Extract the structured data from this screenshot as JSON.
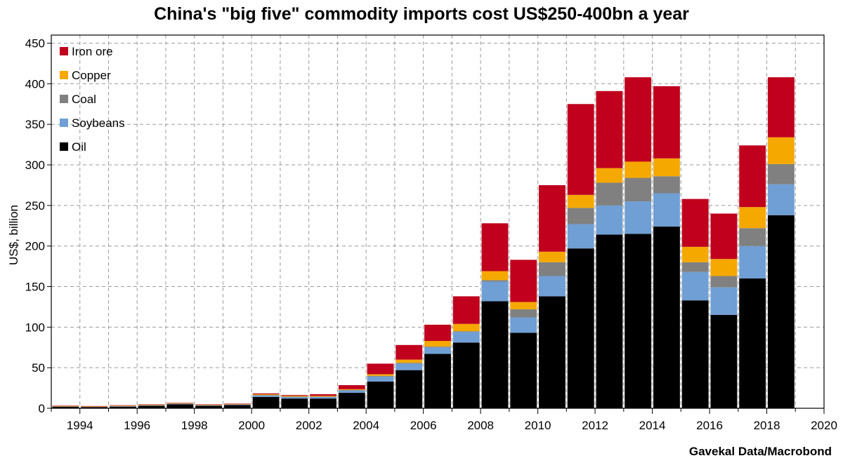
{
  "chart_data": {
    "type": "bar",
    "stacked": true,
    "title": "China's \"big five\" commodity imports cost US$250-400bn a year",
    "ylabel": "US$, billion",
    "xlabel": "",
    "source": "Gavekal Data/Macrobond",
    "ylim": [
      0,
      460
    ],
    "yticks": [
      0,
      50,
      100,
      150,
      200,
      250,
      300,
      350,
      400,
      450
    ],
    "xlim": [
      1993,
      2020
    ],
    "xticks": [
      1994,
      1996,
      1998,
      2000,
      2002,
      2004,
      2006,
      2008,
      2010,
      2012,
      2014,
      2016,
      2018,
      2020
    ],
    "grid": true,
    "legend_position": "top-left",
    "categories": [
      1993,
      1994,
      1995,
      1996,
      1997,
      1998,
      1999,
      2000,
      2001,
      2002,
      2003,
      2004,
      2005,
      2006,
      2007,
      2008,
      2009,
      2010,
      2011,
      2012,
      2013,
      2014,
      2015,
      2016,
      2017,
      2018
    ],
    "series": [
      {
        "name": "Oil",
        "color": "#000000",
        "values": [
          2,
          1.5,
          2,
          3,
          5,
          3,
          4,
          14,
          12,
          12,
          19,
          33,
          47,
          67,
          81,
          132,
          93,
          138,
          197,
          214,
          215,
          224,
          133,
          115,
          160,
          238
        ]
      },
      {
        "name": "Soybeans",
        "color": "#6f9fd4",
        "values": [
          0,
          0,
          0.5,
          0.5,
          0.5,
          0.5,
          0.5,
          2,
          2,
          2,
          3,
          6,
          8,
          8,
          13,
          24,
          19,
          25,
          30,
          36,
          40,
          41,
          35,
          34,
          40,
          38
        ]
      },
      {
        "name": "Coal",
        "color": "#808080",
        "values": [
          0.3,
          0.3,
          0.3,
          0.3,
          0.3,
          0.3,
          0.3,
          0.3,
          0.3,
          0.3,
          0.5,
          1,
          1,
          1,
          1,
          2,
          10,
          17,
          20,
          28,
          29,
          21,
          12,
          14,
          22,
          25
        ]
      },
      {
        "name": "Copper",
        "color": "#f5a800",
        "values": [
          0.5,
          0.5,
          0.5,
          0.5,
          0.5,
          0.5,
          0.5,
          1,
          1,
          1,
          1,
          2,
          4,
          7,
          9,
          11,
          9,
          13,
          16,
          18,
          20,
          22,
          19,
          21,
          26,
          33
        ]
      },
      {
        "name": "Iron ore",
        "color": "#c0001d",
        "values": [
          0.5,
          0.5,
          0.5,
          0.5,
          0.5,
          0.5,
          0.5,
          1,
          1,
          2,
          5,
          13,
          18,
          20,
          34,
          59,
          52,
          82,
          112,
          95,
          104,
          89,
          59,
          56,
          76,
          74
        ]
      }
    ],
    "legend_order": [
      "Iron ore",
      "Copper",
      "Coal",
      "Soybeans",
      "Oil"
    ]
  }
}
